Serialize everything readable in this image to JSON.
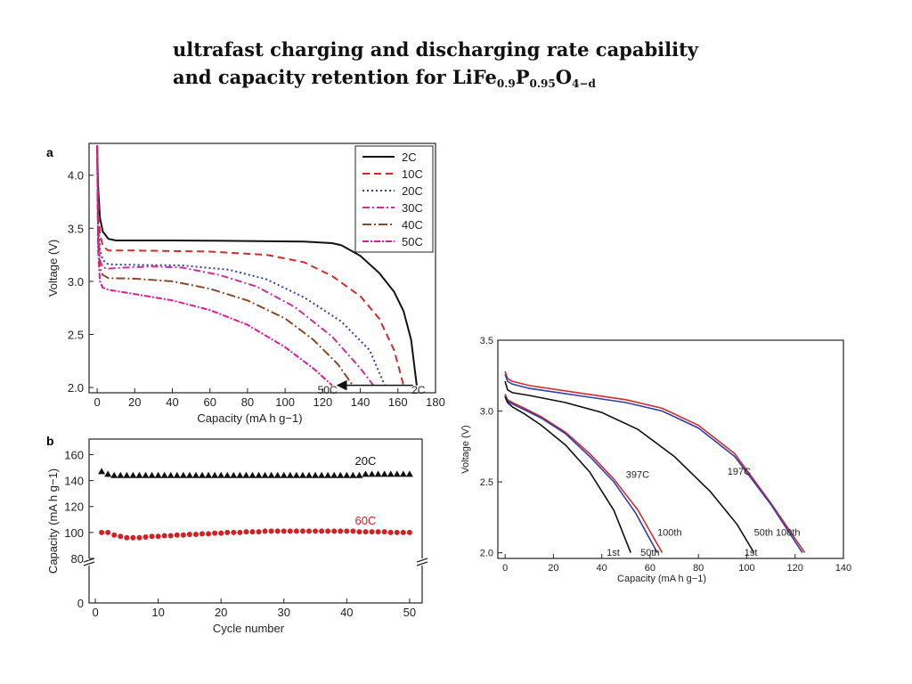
{
  "slide": {
    "title_line1": "ultrafast charging and discharging rate capability",
    "title_line2_prefix": "and capacity retention for LiFe",
    "sub_fe": "0.9",
    "p_letter": "P",
    "sub_p": "0.95",
    "o_letter": "O",
    "sub_o": "4−d"
  },
  "chart_data": [
    {
      "id": "a",
      "panel_label": "a",
      "type": "line",
      "xlabel": "Capacity (mA h g−1)",
      "ylabel": "Voltage (V)",
      "xlim": [
        0,
        180
      ],
      "ylim": [
        1.95,
        4.3
      ],
      "xticks": [
        0,
        20,
        40,
        60,
        80,
        100,
        120,
        140,
        160,
        180
      ],
      "yticks": [
        2.0,
        2.5,
        3.0,
        3.5,
        4.0
      ],
      "legend_position": "top-right",
      "grid": false,
      "annotations": [
        {
          "text": "50C",
          "x": 122,
          "y": 1.99
        },
        {
          "text": "2C",
          "x": 172,
          "y": 1.99
        }
      ],
      "arrow": {
        "from": [
          168,
          2.02
        ],
        "to": [
          128,
          2.02
        ]
      },
      "series": [
        {
          "name": "2C",
          "color": "#111111",
          "dash": "solid",
          "points": [
            [
              0,
              4.28
            ],
            [
              0.5,
              3.9
            ],
            [
              1.5,
              3.6
            ],
            [
              3,
              3.47
            ],
            [
              6,
              3.4
            ],
            [
              10,
              3.385
            ],
            [
              40,
              3.385
            ],
            [
              80,
              3.38
            ],
            [
              110,
              3.375
            ],
            [
              125,
              3.36
            ],
            [
              130,
              3.34
            ],
            [
              140,
              3.24
            ],
            [
              150,
              3.08
            ],
            [
              158,
              2.9
            ],
            [
              163,
              2.72
            ],
            [
              167,
              2.45
            ],
            [
              170,
              2.02
            ]
          ]
        },
        {
          "name": "10C",
          "color": "#d42a2a",
          "dash": "8,5",
          "points": [
            [
              0,
              4.28
            ],
            [
              0.5,
              3.72
            ],
            [
              1.5,
              3.45
            ],
            [
              3,
              3.33
            ],
            [
              6,
              3.29
            ],
            [
              20,
              3.29
            ],
            [
              60,
              3.28
            ],
            [
              90,
              3.25
            ],
            [
              110,
              3.18
            ],
            [
              125,
              3.05
            ],
            [
              140,
              2.86
            ],
            [
              150,
              2.65
            ],
            [
              158,
              2.35
            ],
            [
              163,
              2.02
            ]
          ]
        },
        {
          "name": "20C",
          "color": "#2f3fa8",
          "dash": "2,3",
          "points": [
            [
              0,
              4.28
            ],
            [
              0.5,
              3.6
            ],
            [
              1.5,
              3.3
            ],
            [
              3,
              3.2
            ],
            [
              6,
              3.16
            ],
            [
              20,
              3.155
            ],
            [
              45,
              3.15
            ],
            [
              70,
              3.11
            ],
            [
              90,
              3.02
            ],
            [
              110,
              2.85
            ],
            [
              130,
              2.62
            ],
            [
              145,
              2.35
            ],
            [
              153,
              2.02
            ]
          ]
        },
        {
          "name": "30C",
          "color": "#d02ea0",
          "dash": "8,3,2,3",
          "points": [
            [
              0,
              4.28
            ],
            [
              0.5,
              3.5
            ],
            [
              1.5,
              3.2
            ],
            [
              3,
              3.13
            ],
            [
              6,
              3.12
            ],
            [
              15,
              3.13
            ],
            [
              30,
              3.14
            ],
            [
              45,
              3.13
            ],
            [
              65,
              3.06
            ],
            [
              85,
              2.95
            ],
            [
              105,
              2.76
            ],
            [
              125,
              2.48
            ],
            [
              140,
              2.18
            ],
            [
              147,
              2.02
            ]
          ]
        },
        {
          "name": "40C",
          "color": "#8a4a2a",
          "dash": "10,3,2,3",
          "points": [
            [
              0,
              4.28
            ],
            [
              0.5,
              3.4
            ],
            [
              1.5,
              3.12
            ],
            [
              3,
              3.06
            ],
            [
              6,
              3.03
            ],
            [
              20,
              3.025
            ],
            [
              40,
              3.0
            ],
            [
              60,
              2.93
            ],
            [
              80,
              2.82
            ],
            [
              100,
              2.65
            ],
            [
              115,
              2.45
            ],
            [
              128,
              2.22
            ],
            [
              136,
              2.02
            ]
          ]
        },
        {
          "name": "50C",
          "color": "#e0189a",
          "dash": "7,2,2,2",
          "points": [
            [
              0,
              4.28
            ],
            [
              0.5,
              3.3
            ],
            [
              1.5,
              3.0
            ],
            [
              3,
              2.94
            ],
            [
              6,
              2.92
            ],
            [
              20,
              2.88
            ],
            [
              40,
              2.82
            ],
            [
              60,
              2.73
            ],
            [
              80,
              2.59
            ],
            [
              100,
              2.38
            ],
            [
              115,
              2.18
            ],
            [
              125,
              2.02
            ]
          ]
        }
      ]
    },
    {
      "id": "b",
      "panel_label": "b",
      "type": "scatter",
      "xlabel": "Cycle number",
      "ylabel": "Capacity (mA h g−1)",
      "xlim": [
        -1,
        52
      ],
      "xticks": [
        0,
        10,
        20,
        30,
        40,
        50
      ],
      "yticks": [
        0,
        80,
        100,
        120,
        140,
        160
      ],
      "axis_break": [
        0,
        80
      ],
      "grid": false,
      "series": [
        {
          "name": "20C",
          "label_x": 43,
          "label_y": 152,
          "color": "#111111",
          "marker": "triangle",
          "values": [
            147,
            145,
            144,
            144,
            144,
            144,
            144,
            144,
            144,
            144,
            144,
            144,
            144,
            144,
            144,
            144,
            144,
            144,
            144,
            144,
            144,
            144,
            144,
            144,
            144,
            144,
            144,
            144,
            144,
            144,
            144,
            144,
            144,
            144,
            144,
            144,
            144,
            144,
            144,
            144,
            144,
            144,
            145,
            145,
            145,
            145,
            145,
            145,
            145,
            145
          ]
        },
        {
          "name": "60C",
          "label_x": 43,
          "label_y": 106,
          "color": "#d42020",
          "marker": "circle",
          "values": [
            100,
            100,
            98,
            97,
            96,
            96,
            96,
            96.5,
            97,
            97,
            97.5,
            97.5,
            98,
            98,
            98.5,
            98.5,
            99,
            99,
            99.5,
            99.5,
            100,
            100,
            100,
            100.5,
            100.5,
            100.5,
            101,
            101,
            101,
            101,
            101,
            101,
            101,
            101,
            101,
            101,
            101,
            101,
            101,
            101,
            101,
            100.5,
            100.5,
            100.5,
            100.5,
            100.5,
            100,
            100,
            100,
            100
          ]
        }
      ]
    },
    {
      "id": "c",
      "type": "line",
      "xlabel": "Capacity (mA h g−1)",
      "ylabel": "Voltage (V)",
      "xlim": [
        -3,
        140
      ],
      "ylim": [
        1.96,
        3.5
      ],
      "xticks": [
        0,
        20,
        40,
        60,
        80,
        100,
        120,
        140
      ],
      "yticks": [
        2.0,
        2.5,
        3.0,
        3.5
      ],
      "grid": false,
      "annotations": [
        {
          "text": "397C",
          "x": 50,
          "y": 2.53
        },
        {
          "text": "197C",
          "x": 92,
          "y": 2.55
        },
        {
          "text": "1st",
          "x": 42,
          "y": 1.98
        },
        {
          "text": "50th",
          "x": 56,
          "y": 1.98
        },
        {
          "text": "100th",
          "x": 63,
          "y": 2.12
        },
        {
          "text": "50th",
          "x": 103,
          "y": 2.12
        },
        {
          "text": "100th",
          "x": 112,
          "y": 2.12
        },
        {
          "text": "1st",
          "x": 99,
          "y": 1.98
        }
      ],
      "series": [
        {
          "color": "#d42a2a",
          "dash": "solid",
          "points": [
            [
              0,
              3.28
            ],
            [
              1,
              3.23
            ],
            [
              3,
              3.21
            ],
            [
              10,
              3.18
            ],
            [
              30,
              3.13
            ],
            [
              50,
              3.08
            ],
            [
              65,
              3.02
            ],
            [
              80,
              2.9
            ],
            [
              95,
              2.7
            ],
            [
              110,
              2.35
            ],
            [
              124,
              2.0
            ]
          ]
        },
        {
          "color": "#2f3fa8",
          "dash": "solid",
          "points": [
            [
              0,
              3.26
            ],
            [
              1,
              3.21
            ],
            [
              3,
              3.19
            ],
            [
              10,
              3.16
            ],
            [
              30,
              3.11
            ],
            [
              50,
              3.06
            ],
            [
              65,
              3.0
            ],
            [
              80,
              2.88
            ],
            [
              95,
              2.68
            ],
            [
              110,
              2.34
            ],
            [
              123,
              2.0
            ]
          ]
        },
        {
          "color": "#111111",
          "dash": "solid",
          "points": [
            [
              0,
              3.21
            ],
            [
              1,
              3.15
            ],
            [
              3,
              3.13
            ],
            [
              10,
              3.11
            ],
            [
              25,
              3.06
            ],
            [
              40,
              2.99
            ],
            [
              55,
              2.87
            ],
            [
              70,
              2.68
            ],
            [
              85,
              2.43
            ],
            [
              96,
              2.2
            ],
            [
              103,
              2.0
            ]
          ]
        },
        {
          "color": "#d42a2a",
          "dash": "solid",
          "points": [
            [
              0,
              3.12
            ],
            [
              1,
              3.08
            ],
            [
              3,
              3.06
            ],
            [
              8,
              3.02
            ],
            [
              15,
              2.96
            ],
            [
              25,
              2.85
            ],
            [
              35,
              2.7
            ],
            [
              45,
              2.52
            ],
            [
              55,
              2.3
            ],
            [
              65,
              2.0
            ]
          ]
        },
        {
          "color": "#2f3fa8",
          "dash": "solid",
          "points": [
            [
              0,
              3.11
            ],
            [
              1,
              3.07
            ],
            [
              3,
              3.05
            ],
            [
              8,
              3.01
            ],
            [
              15,
              2.95
            ],
            [
              25,
              2.84
            ],
            [
              35,
              2.68
            ],
            [
              45,
              2.5
            ],
            [
              54,
              2.28
            ],
            [
              63,
              2.0
            ]
          ]
        },
        {
          "color": "#111111",
          "dash": "solid",
          "points": [
            [
              0,
              3.1
            ],
            [
              1,
              3.06
            ],
            [
              3,
              3.03
            ],
            [
              8,
              2.98
            ],
            [
              15,
              2.9
            ],
            [
              25,
              2.76
            ],
            [
              35,
              2.57
            ],
            [
              45,
              2.3
            ],
            [
              52,
              2.0
            ]
          ]
        }
      ]
    }
  ]
}
